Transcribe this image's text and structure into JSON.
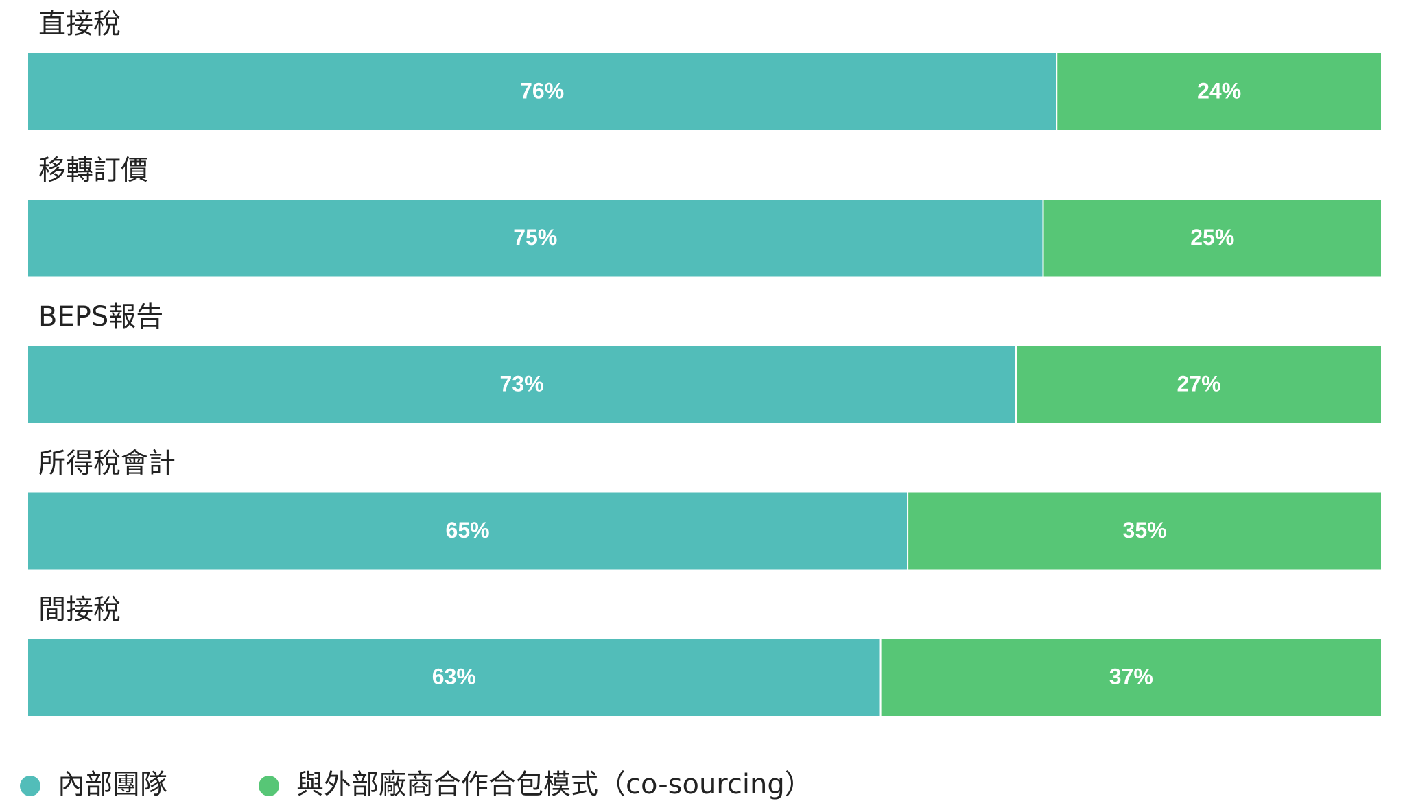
{
  "chart_data": {
    "type": "stacked_horizontal_bar",
    "categories": [
      "直接稅",
      "移轉訂價",
      "BEPS報告",
      "所得稅會計",
      "間接稅"
    ],
    "xlim": [
      0,
      100
    ],
    "legend": "bottom",
    "series": [
      {
        "name": "內部團隊",
        "color": "#52bdb9",
        "values": [
          76,
          75,
          73,
          65,
          63
        ],
        "value_labels": [
          "76%",
          "75%",
          "73%",
          "65%",
          "63%"
        ]
      },
      {
        "name": "與外部廠商合作合包模式（co-sourcing）",
        "color": "#57c676",
        "values": [
          24,
          25,
          27,
          35,
          37
        ],
        "value_labels": [
          "24%",
          "25%",
          "27%",
          "35%",
          "37%"
        ]
      }
    ]
  }
}
